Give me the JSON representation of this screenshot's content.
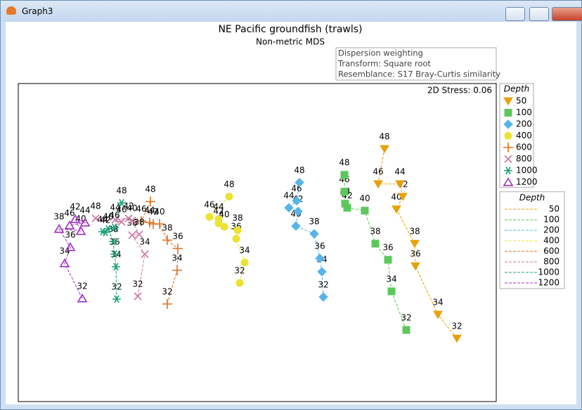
{
  "window_title": "Graph3",
  "chart_data": {
    "type": "scatter",
    "title": "NE Pacific groundfish (trawls)",
    "subtitle": "Non-metric MDS",
    "annotations": [
      "Dispersion weighting",
      "Transform: Square root",
      "Resemblance: S17 Bray-Curtis similarity"
    ],
    "stress": "2D Stress: 0.06",
    "legend_title": "Depth",
    "xlim": [
      0,
      680
    ],
    "ylim": [
      0,
      453
    ],
    "series": [
      {
        "name": "50",
        "color": "#e8a10c",
        "marker": "triangle-down",
        "point_labels": [
          "32",
          "34",
          "36",
          "38",
          "40",
          "42",
          "44",
          "46",
          "48"
        ],
        "x": [
          624,
          597,
          565,
          564,
          538,
          547,
          543,
          512,
          521
        ],
        "y": [
          90,
          124,
          193,
          225,
          274,
          292,
          310,
          310,
          360
        ]
      },
      {
        "name": "100",
        "color": "#5cc85c",
        "marker": "square",
        "point_labels": [
          "32",
          "34",
          "36",
          "38",
          "40",
          "42",
          "44",
          "46",
          "48"
        ],
        "x": [
          552,
          531,
          526,
          508,
          493,
          468,
          465,
          464,
          464
        ],
        "y": [
          102,
          157,
          202,
          225,
          272,
          276,
          282,
          299,
          323
        ]
      },
      {
        "name": "200",
        "color": "#56b4e9",
        "marker": "diamond",
        "point_labels": [
          "32",
          "34",
          "36",
          "38",
          "40",
          "42",
          "44",
          "46",
          "48"
        ],
        "x": [
          434,
          432,
          429,
          421,
          395,
          398,
          385,
          396,
          400
        ],
        "y": [
          149,
          185,
          204,
          239,
          250,
          271,
          276,
          286,
          312
        ]
      },
      {
        "name": "400",
        "color": "#ece234",
        "marker": "circle",
        "point_labels": [
          "32",
          "34",
          "36",
          "38",
          "40",
          "42",
          "44",
          "46",
          "48"
        ],
        "x": [
          315,
          322,
          310,
          312,
          293,
          285,
          285,
          272,
          300
        ],
        "y": [
          169,
          198,
          232,
          244,
          249,
          254,
          260,
          263,
          292
        ]
      },
      {
        "name": "600",
        "color": "#e0701e",
        "marker": "plus",
        "point_labels": [
          "32",
          "34",
          "36",
          "38",
          "40",
          "42",
          "44",
          "46",
          "48"
        ],
        "x": [
          212,
          226,
          227,
          212,
          201,
          192,
          187,
          175,
          188
        ],
        "y": [
          139,
          187,
          218,
          230,
          253,
          253,
          255,
          257,
          285
        ]
      },
      {
        "name": "800",
        "color": "#cc79a7",
        "marker": "cross",
        "point_labels": [
          "32",
          "34",
          "36",
          "38",
          "40",
          "42",
          "44",
          "46",
          "48"
        ],
        "x": [
          170,
          180,
          162,
          172,
          162,
          157,
          138,
          147,
          110
        ],
        "y": [
          150,
          210,
          237,
          238,
          258,
          261,
          259,
          256,
          261
        ]
      },
      {
        "name": "1000",
        "color": "#1aa37a",
        "marker": "asterisk",
        "point_labels": [
          "32",
          "34",
          "36",
          "38",
          "40",
          "42",
          "44",
          "46",
          "48"
        ],
        "x": [
          140,
          139,
          137,
          135,
          128,
          124,
          120,
          137,
          147
        ],
        "y": [
          146,
          192,
          210,
          228,
          246,
          241,
          242,
          248,
          283
        ]
      },
      {
        "name": "1200",
        "color": "#a030c0",
        "marker": "triangle-open",
        "point_labels": [
          "32",
          "34",
          "36",
          "38",
          "40",
          "42",
          "44",
          "46"
        ],
        "x": [
          91,
          66,
          74,
          58,
          89,
          81,
          95,
          73
        ],
        "y": [
          147,
          197,
          220,
          246,
          243,
          260,
          255,
          251
        ]
      }
    ]
  }
}
